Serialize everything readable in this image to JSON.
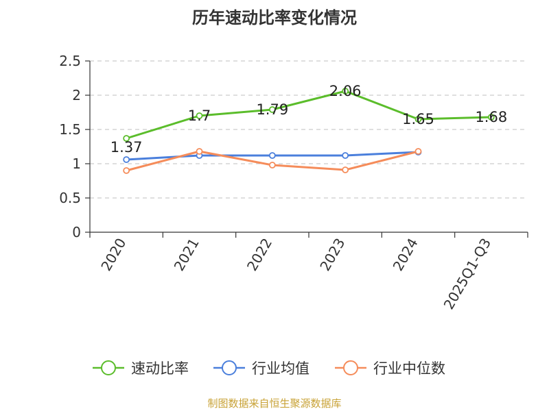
{
  "chart_data": {
    "type": "line",
    "title": "历年速动比率变化情况",
    "categories": [
      "2020",
      "2021",
      "2022",
      "2023",
      "2024",
      "2025Q1-Q3"
    ],
    "series": [
      {
        "name": "速动比率",
        "color": "#5bbd2b",
        "values": [
          1.37,
          1.7,
          1.79,
          2.06,
          1.65,
          1.68
        ],
        "labels": [
          "1.37",
          "1.7",
          "1.79",
          "2.06",
          "1.65",
          "1.68"
        ]
      },
      {
        "name": "行业均值",
        "color": "#4a7fdc",
        "values": [
          1.06,
          1.12,
          1.12,
          1.12,
          1.17,
          null
        ]
      },
      {
        "name": "行业中位数",
        "color": "#f58c5a",
        "values": [
          0.9,
          1.18,
          0.98,
          0.91,
          1.18,
          null
        ]
      }
    ],
    "yticks": [
      "0",
      "0.5",
      "1",
      "1.5",
      "2",
      "2.5"
    ],
    "ylim": [
      0,
      2.5
    ],
    "grid": true,
    "legend_position": "bottom"
  },
  "footer": {
    "source": "制图数据来自恒生聚源数据库"
  }
}
